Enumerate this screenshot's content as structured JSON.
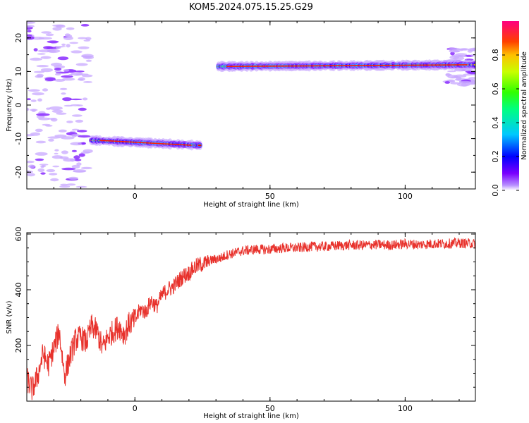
{
  "title": "KOM5.2024.075.15.25.G29",
  "chart_data": [
    {
      "type": "heatmap",
      "xlabel": "Height of straight line (km)",
      "ylabel": "Frequency (Hz)",
      "xlim": [
        -40,
        126
      ],
      "ylim": [
        -25,
        25
      ],
      "xticks": [
        0,
        50,
        100
      ],
      "yticks": [
        -20,
        -10,
        0,
        10,
        20
      ],
      "colorbar": {
        "label": "Normalized spectral amplitude",
        "range": [
          0,
          1
        ],
        "ticks": [
          "0.0",
          "0.2",
          "0.4",
          "0.6",
          "0.8"
        ]
      },
      "ridge_segments": [
        {
          "x_start": -16,
          "x_end": 24,
          "freq_start": -10.5,
          "freq_end": -12
        },
        {
          "x_start": 31,
          "x_end": 126,
          "freq_start": 11.5,
          "freq_end": 12
        }
      ],
      "noise_regions": [
        {
          "x_start": -40,
          "x_end": -17,
          "freq_min": -25,
          "freq_max": 25
        },
        {
          "x_start": 115,
          "x_end": 126,
          "freq_min": 6,
          "freq_max": 17
        }
      ]
    },
    {
      "type": "line",
      "xlabel": "Height of straight line (km)",
      "ylabel": "SNR (v/v)",
      "xlim": [
        -40,
        126
      ],
      "ylim": [
        0,
        605
      ],
      "xticks": [
        0,
        50,
        100
      ],
      "yticks": [
        200,
        400,
        600
      ],
      "series": [
        {
          "color": "#e8322c",
          "x": [
            -40,
            -38,
            -36,
            -34,
            -32,
            -30,
            -28,
            -26,
            -24,
            -22,
            -20,
            -18,
            -16,
            -14,
            -12,
            -10,
            -8,
            -6,
            -4,
            -2,
            0,
            2,
            4,
            6,
            8,
            10,
            12,
            14,
            16,
            18,
            20,
            22,
            24,
            26,
            28,
            30,
            32,
            34,
            36,
            38,
            40,
            45,
            50,
            55,
            60,
            65,
            70,
            75,
            80,
            85,
            90,
            95,
            100,
            105,
            110,
            115,
            120,
            126
          ],
          "y": [
            80,
            40,
            90,
            170,
            130,
            190,
            250,
            90,
            160,
            220,
            230,
            210,
            270,
            250,
            190,
            230,
            250,
            270,
            240,
            280,
            290,
            330,
            320,
            360,
            340,
            380,
            400,
            410,
            430,
            450,
            460,
            480,
            490,
            495,
            505,
            510,
            515,
            525,
            530,
            535,
            540,
            545,
            545,
            550,
            550,
            555,
            555,
            558,
            560,
            560,
            562,
            560,
            565,
            562,
            565,
            565,
            568,
            565
          ]
        }
      ]
    }
  ]
}
